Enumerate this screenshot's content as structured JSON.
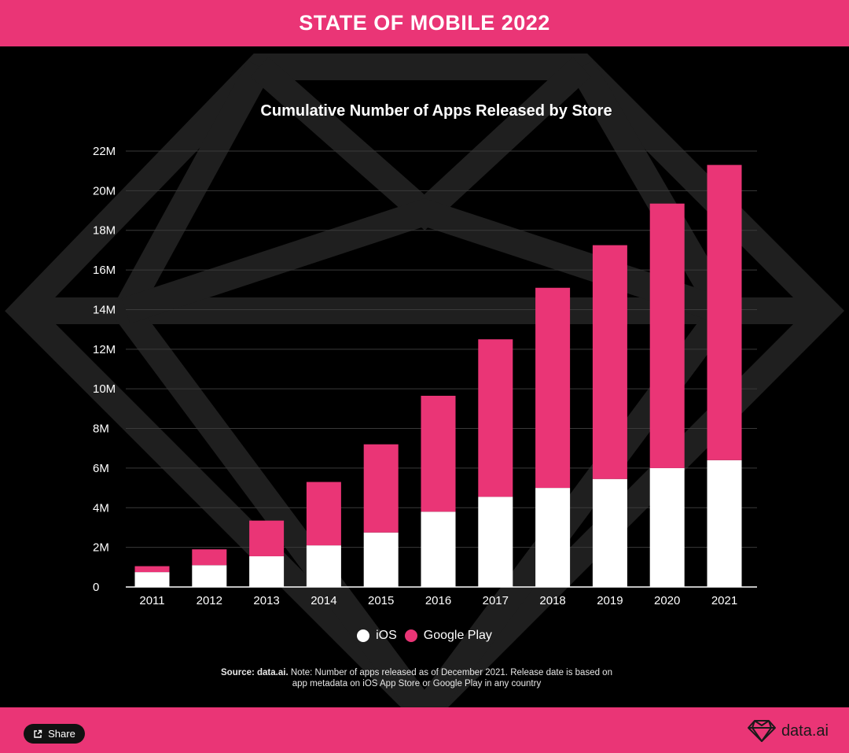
{
  "header": {
    "title": "STATE OF MOBILE 2022"
  },
  "chart_data": {
    "type": "bar",
    "stacked": true,
    "title": "Cumulative Number of Apps Released by Store",
    "categories": [
      "2011",
      "2012",
      "2013",
      "2014",
      "2015",
      "2016",
      "2017",
      "2018",
      "2019",
      "2020",
      "2021"
    ],
    "series": [
      {
        "name": "iOS",
        "color": "#ffffff",
        "values": [
          0.75,
          1.1,
          1.55,
          2.1,
          2.75,
          3.8,
          4.55,
          5.0,
          5.45,
          6.0,
          6.4
        ]
      },
      {
        "name": "Google Play",
        "color": "#ea3576",
        "values": [
          0.3,
          0.8,
          1.8,
          3.2,
          4.45,
          5.85,
          7.95,
          10.1,
          11.8,
          13.35,
          14.9
        ]
      }
    ],
    "yticks": [
      "0",
      "2M",
      "4M",
      "6M",
      "8M",
      "10M",
      "12M",
      "14M",
      "16M",
      "18M",
      "20M",
      "22M"
    ],
    "ylim": [
      0,
      22
    ],
    "grid": true,
    "legend_position": "bottom-center"
  },
  "source": {
    "label": "Source: data.ai.",
    "note": "Note: Number of apps released as of December 2021. Release date is based on app metadata on iOS App Store or Google Play in any country"
  },
  "footer": {
    "share_label": "Share",
    "brand_name": "data.ai",
    "accent_color": "#ea3576"
  }
}
